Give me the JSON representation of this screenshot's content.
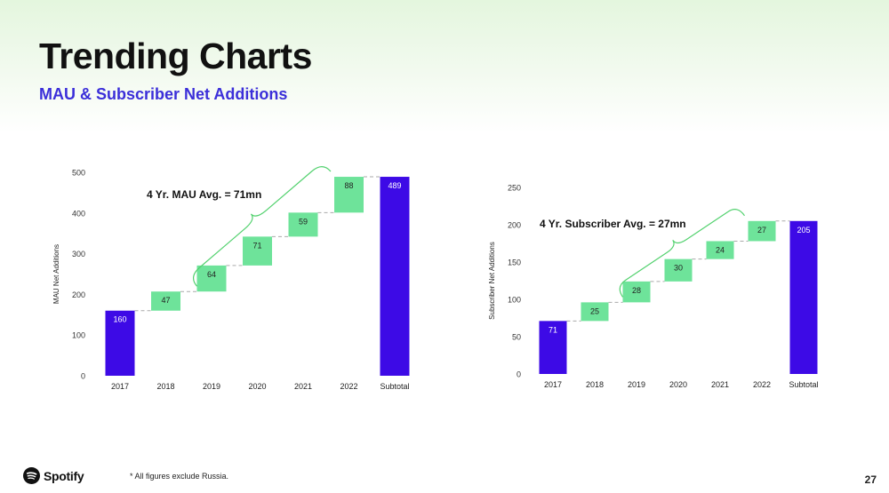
{
  "title": "Trending Charts",
  "subtitle": "MAU & Subscriber Net Additions",
  "footnote": "* All figures exclude Russia.",
  "page_number": "27",
  "logo_text": "Spotify",
  "colors": {
    "subtotal": "#3d0ae6",
    "increment": "#6ee39a",
    "accent": "#3b2fd9",
    "bracket": "#52d16e"
  },
  "chart_data": [
    {
      "type": "bar",
      "waterfall": true,
      "categories": [
        "2017",
        "2018",
        "2019",
        "2020",
        "2021",
        "2022",
        "Subtotal"
      ],
      "values": [
        160,
        47,
        64,
        71,
        59,
        88,
        489
      ],
      "labels": [
        "160",
        "47",
        "64",
        "71",
        "59",
        "88",
        "489"
      ],
      "ylabel": "MAU Net Additions",
      "ylim": [
        0,
        500
      ],
      "yticks": [
        0,
        100,
        200,
        300,
        400,
        500
      ],
      "annotation": "4 Yr. MAU Avg. = 71mn"
    },
    {
      "type": "bar",
      "waterfall": true,
      "categories": [
        "2017",
        "2018",
        "2019",
        "2020",
        "2021",
        "2022",
        "Subtotal"
      ],
      "values": [
        71,
        25,
        28,
        30,
        24,
        27,
        205
      ],
      "labels": [
        "71",
        "25",
        "28",
        "30",
        "24",
        "27",
        "205"
      ],
      "ylabel": "Subscriber Net Additions",
      "ylim": [
        0,
        250
      ],
      "yticks": [
        0,
        50,
        100,
        150,
        200,
        250
      ],
      "annotation": "4 Yr. Subscriber Avg. = 27mn"
    }
  ]
}
